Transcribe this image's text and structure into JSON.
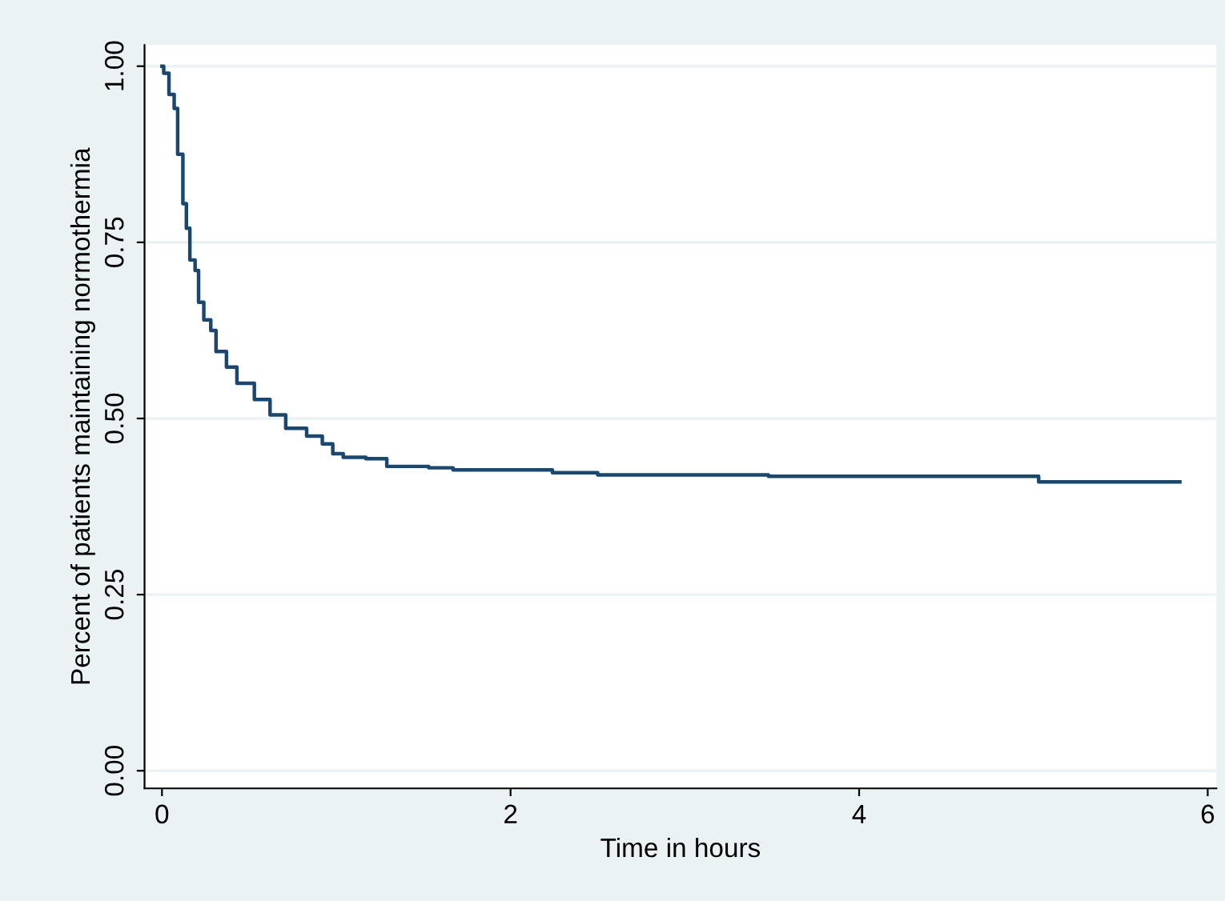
{
  "chart_data": {
    "type": "step",
    "xlabel": "Time in hours",
    "ylabel": "Percent of patients maintaining normothermia",
    "x": [
      0,
      0.01,
      0.04,
      0.07,
      0.09,
      0.12,
      0.14,
      0.16,
      0.19,
      0.21,
      0.24,
      0.28,
      0.31,
      0.37,
      0.43,
      0.53,
      0.62,
      0.71,
      0.83,
      0.92,
      0.98,
      1.04,
      1.17,
      1.29,
      1.53,
      1.67,
      2.24,
      2.5,
      3.48,
      5.03,
      5.84
    ],
    "series": [
      {
        "color": "#1a476f",
        "values": [
          1.0,
          0.99,
          0.96,
          0.94,
          0.875,
          0.805,
          0.77,
          0.725,
          0.71,
          0.665,
          0.64,
          0.625,
          0.595,
          0.573,
          0.55,
          0.527,
          0.505,
          0.486,
          0.475,
          0.464,
          0.45,
          0.445,
          0.443,
          0.432,
          0.43,
          0.427,
          0.423,
          0.42,
          0.418,
          0.41,
          0.41
        ]
      }
    ],
    "xlim": [
      -0.1,
      6.05
    ],
    "xticks": [
      0,
      2,
      4,
      6
    ],
    "ylim": [
      -0.025,
      1.03
    ],
    "yticks": [
      {
        "value": 0,
        "label": "0.00"
      },
      {
        "value": 0.25,
        "label": "0.25"
      },
      {
        "value": 0.5,
        "label": "0.50"
      },
      {
        "value": 0.75,
        "label": "0.75"
      },
      {
        "value": 1.0,
        "label": "1.00"
      }
    ],
    "grid": "y",
    "line_style": "solid"
  }
}
